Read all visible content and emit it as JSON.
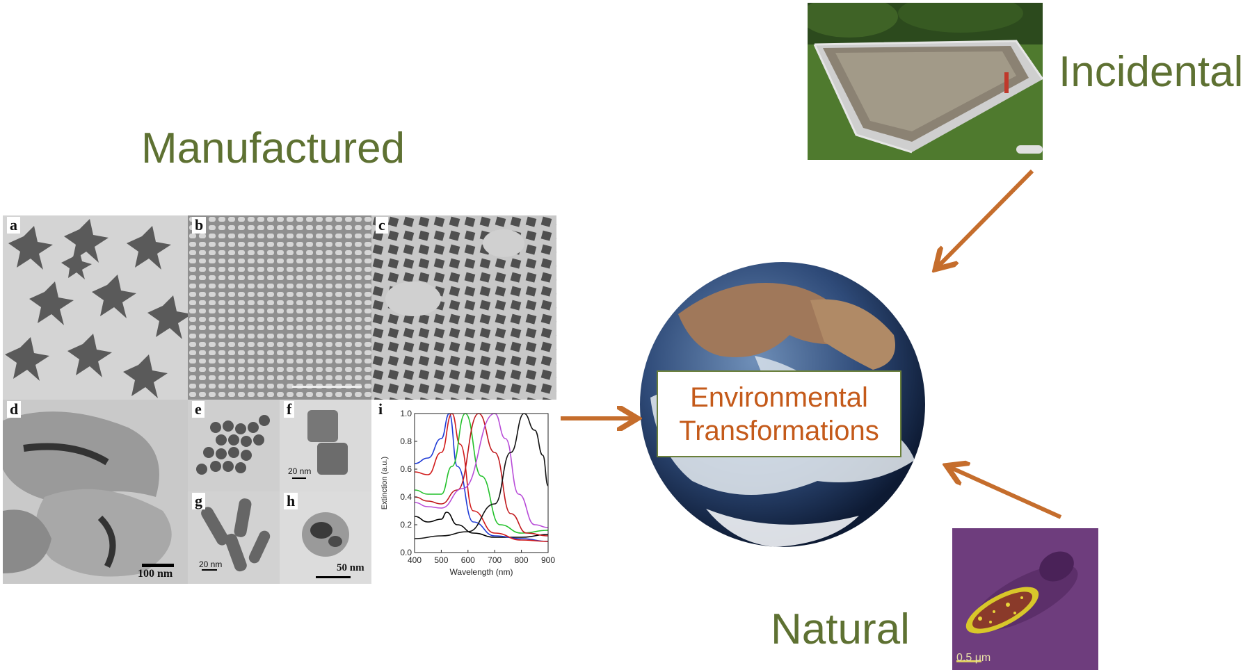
{
  "labels": {
    "manufactured": "Manufactured",
    "incidental": "Incidental",
    "natural": "Natural"
  },
  "center": {
    "line1": "Environmental",
    "line2": "Transformations"
  },
  "panels": {
    "a": "a",
    "b": "b",
    "c": "c",
    "d": "d",
    "e": "e",
    "f": "f",
    "g": "g",
    "h": "h",
    "i": "i",
    "scale_d": "100 nm",
    "scale_f": "20 nm",
    "scale_g": "20 nm",
    "scale_h": "50 nm",
    "scale_natural": "0.5 μm"
  },
  "chart_data": {
    "type": "line",
    "xlabel": "Wavelength (nm)",
    "ylabel": "Extinction (a.u.)",
    "xlim": [
      400,
      900
    ],
    "ylim": [
      0.0,
      1.0
    ],
    "xticks": [
      400,
      500,
      600,
      700,
      800,
      900
    ],
    "yticks": [
      0.0,
      0.2,
      0.4,
      0.6,
      0.8,
      1.0
    ],
    "series": [
      {
        "color": "#000000",
        "x": [
          400,
          450,
          500,
          520,
          560,
          620,
          700,
          800,
          900
        ],
        "y": [
          0.26,
          0.22,
          0.24,
          0.29,
          0.2,
          0.14,
          0.11,
          0.11,
          0.13
        ]
      },
      {
        "color": "#1f3bd6",
        "x": [
          400,
          450,
          500,
          530,
          560,
          620,
          700,
          800,
          900
        ],
        "y": [
          0.64,
          0.68,
          0.82,
          1.0,
          0.62,
          0.22,
          0.12,
          0.1,
          0.08
        ]
      },
      {
        "color": "#d11a1a",
        "x": [
          400,
          450,
          500,
          540,
          570,
          620,
          700,
          800,
          900
        ],
        "y": [
          0.58,
          0.56,
          0.72,
          1.0,
          0.78,
          0.3,
          0.14,
          0.09,
          0.08
        ]
      },
      {
        "color": "#22c12a",
        "x": [
          400,
          450,
          500,
          540,
          590,
          650,
          720,
          800,
          900
        ],
        "y": [
          0.45,
          0.42,
          0.42,
          0.62,
          1.0,
          0.55,
          0.2,
          0.14,
          0.16
        ]
      },
      {
        "color": "#c0161a",
        "x": [
          400,
          450,
          500,
          560,
          640,
          700,
          760,
          820,
          900
        ],
        "y": [
          0.4,
          0.37,
          0.35,
          0.45,
          1.0,
          0.72,
          0.28,
          0.14,
          0.12
        ]
      },
      {
        "color": "#b84cd8",
        "x": [
          400,
          450,
          500,
          580,
          700,
          740,
          790,
          850,
          900
        ],
        "y": [
          0.36,
          0.33,
          0.32,
          0.46,
          1.0,
          0.82,
          0.42,
          0.2,
          0.18
        ]
      },
      {
        "color": "#111111",
        "x": [
          400,
          500,
          600,
          700,
          760,
          810,
          850,
          880,
          900
        ],
        "y": [
          0.1,
          0.12,
          0.15,
          0.35,
          0.72,
          1.0,
          0.88,
          0.7,
          0.48
        ]
      }
    ]
  },
  "colors": {
    "label_green": "#5e7132",
    "arrow_orange": "#c56d2c",
    "center_text": "#c45a1a"
  }
}
